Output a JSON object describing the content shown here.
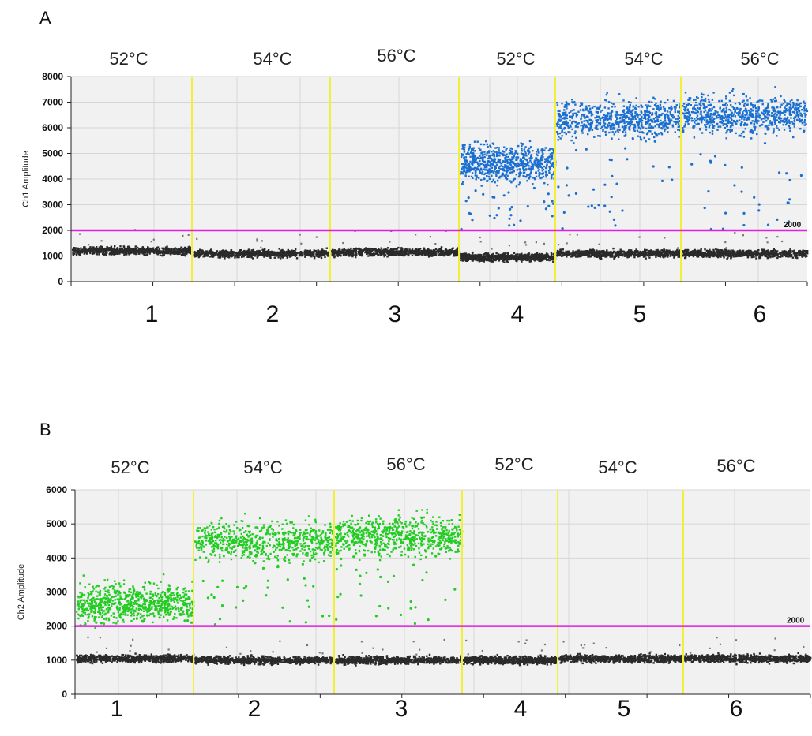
{
  "chart_data": [
    {
      "panel": "A",
      "type": "scatter",
      "ylabel": "Ch1 Amplitude",
      "ylim": [
        0,
        8000
      ],
      "yticks": [
        0,
        1000,
        2000,
        3000,
        4000,
        5000,
        6000,
        7000,
        8000
      ],
      "threshold": 2000,
      "threshold_label": "2000",
      "threshold_color": "#e020e0",
      "positive_color": "#1a6fd0",
      "negative_color": "#2a2a2a",
      "divider_color": "#f2ef3a",
      "wells": [
        {
          "label": "1",
          "temperature": "52°C",
          "negative_mean": 1200,
          "positive": false
        },
        {
          "label": "2",
          "temperature": "54°C",
          "negative_mean": 1100,
          "positive": false
        },
        {
          "label": "3",
          "temperature": "56°C",
          "negative_mean": 1150,
          "positive": false
        },
        {
          "label": "4",
          "temperature": "52°C",
          "negative_mean": 950,
          "positive": true,
          "positive_mean": 4650
        },
        {
          "label": "5",
          "temperature": "54°C",
          "negative_mean": 1100,
          "positive": true,
          "positive_mean": 6350
        },
        {
          "label": "6",
          "temperature": "56°C",
          "negative_mean": 1100,
          "positive": true,
          "positive_mean": 6500
        }
      ]
    },
    {
      "panel": "B",
      "type": "scatter",
      "ylabel": "Ch2 Amplitude",
      "ylim": [
        0,
        6000
      ],
      "yticks": [
        0,
        1000,
        2000,
        3000,
        4000,
        5000,
        6000
      ],
      "threshold": 2000,
      "threshold_label": "2000",
      "threshold_color": "#e020e0",
      "positive_color": "#22cc22",
      "negative_color": "#2a2a2a",
      "divider_color": "#f2ef3a",
      "wells": [
        {
          "label": "1",
          "temperature": "52°C",
          "negative_mean": 1050,
          "positive": true,
          "positive_mean": 2700
        },
        {
          "label": "2",
          "temperature": "54°C",
          "negative_mean": 1000,
          "positive": true,
          "positive_mean": 4500
        },
        {
          "label": "3",
          "temperature": "56°C",
          "negative_mean": 1000,
          "positive": true,
          "positive_mean": 4650
        },
        {
          "label": "4",
          "temperature": "52°C",
          "negative_mean": 1000,
          "positive": false
        },
        {
          "label": "5",
          "temperature": "54°C",
          "negative_mean": 1050,
          "positive": false
        },
        {
          "label": "6",
          "temperature": "56°C",
          "negative_mean": 1050,
          "positive": false
        }
      ]
    }
  ],
  "panel_letters": [
    "A",
    "B"
  ]
}
